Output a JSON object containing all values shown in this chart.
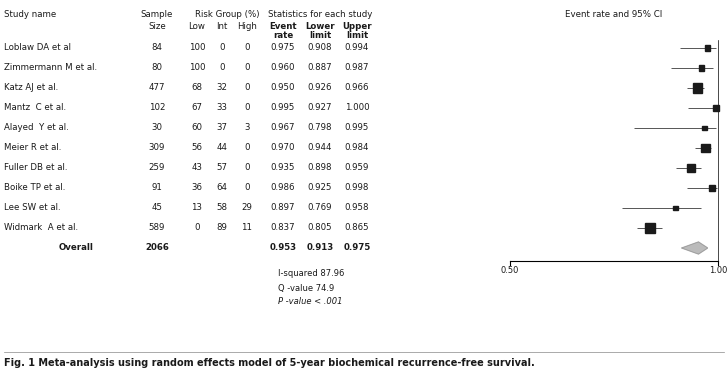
{
  "studies": [
    {
      "name": "Loblaw DA et al",
      "n": 84,
      "low": 100,
      "int": 0,
      "high": 0,
      "event": 0.975,
      "lower": 0.908,
      "upper": 0.994
    },
    {
      "name": "Zimmermann M et al.",
      "n": 80,
      "low": 100,
      "int": 0,
      "high": 0,
      "event": 0.96,
      "lower": 0.887,
      "upper": 0.987
    },
    {
      "name": "Katz AJ et al.",
      "n": 477,
      "low": 68,
      "int": 32,
      "high": 0,
      "event": 0.95,
      "lower": 0.926,
      "upper": 0.966
    },
    {
      "name": "Mantz  C et al.",
      "n": 102,
      "low": 67,
      "int": 33,
      "high": 0,
      "event": 0.995,
      "lower": 0.927,
      "upper": 1.0
    },
    {
      "name": "Alayed  Y et al.",
      "n": 30,
      "low": 60,
      "int": 37,
      "high": 3,
      "event": 0.967,
      "lower": 0.798,
      "upper": 0.995
    },
    {
      "name": "Meier R et al.",
      "n": 309,
      "low": 56,
      "int": 44,
      "high": 0,
      "event": 0.97,
      "lower": 0.944,
      "upper": 0.984
    },
    {
      "name": "Fuller DB et al.",
      "n": 259,
      "low": 43,
      "int": 57,
      "high": 0,
      "event": 0.935,
      "lower": 0.898,
      "upper": 0.959
    },
    {
      "name": "Boike TP et al.",
      "n": 91,
      "low": 36,
      "int": 64,
      "high": 0,
      "event": 0.986,
      "lower": 0.925,
      "upper": 0.998
    },
    {
      "name": "Lee SW et al.",
      "n": 45,
      "low": 13,
      "int": 58,
      "high": 29,
      "event": 0.897,
      "lower": 0.769,
      "upper": 0.958
    },
    {
      "name": "Widmark  A et al.",
      "n": 589,
      "low": 0,
      "int": 89,
      "high": 11,
      "event": 0.837,
      "lower": 0.805,
      "upper": 0.865
    }
  ],
  "overall": {
    "n": 2066,
    "event": 0.953,
    "lower": 0.913,
    "upper": 0.975
  },
  "stats": {
    "i_squared": "87.96",
    "q_value": "74.9",
    "p_value": "< .001"
  },
  "axis_min": 0.5,
  "axis_max": 1.0,
  "axis_ticks": [
    0.5,
    1.0
  ],
  "bg_color": "#ffffff",
  "text_color": "#1a1a1a",
  "box_color": "#1a1a1a",
  "ci_line_color": "#555555",
  "caption": "Fig. 1 Meta-analysis using random effects model of 5-year biochemical recurrence-free survival."
}
